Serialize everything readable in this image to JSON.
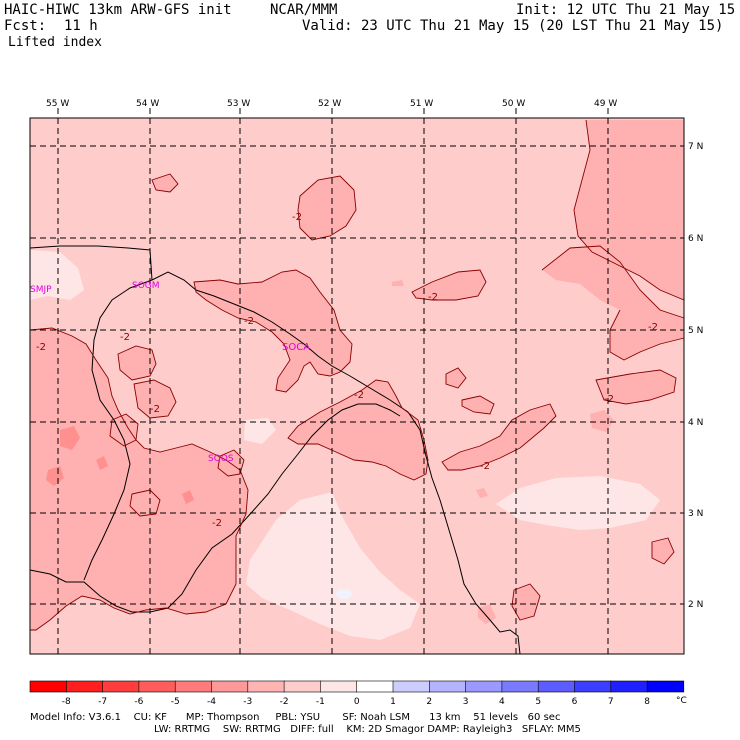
{
  "header": {
    "model": "HAIC-HIWC 13km ARW-GFS init",
    "org": "NCAR/MMM",
    "init": "Init: 12 UTC Thu 21 May 15",
    "fcst_label": "Fcst:",
    "fcst_value": "11 h",
    "valid": "Valid: 23 UTC Thu 21 May 15 (20 LST Thu 21 May 15)",
    "field": "Lifted index"
  },
  "map": {
    "lon_labels": [
      "55 W",
      "54 W",
      "53 W",
      "52 W",
      "51 W",
      "50 W",
      "49 W"
    ],
    "lat_labels": [
      "7 N",
      "6 N",
      "5 N",
      "4 N",
      "3 N",
      "2 N"
    ],
    "stations": [
      "SMJP",
      "SOGM",
      "SOCA",
      "SOOS"
    ],
    "contour_labels": [
      "-2",
      "-2",
      "-2",
      "-2",
      "-2",
      "-2",
      "-2",
      "-2",
      "-2",
      "-2",
      "-2"
    ]
  },
  "colorbar": {
    "tick_labels": [
      "-8",
      "-7",
      "-6",
      "-5",
      "-4",
      "-3",
      "-2",
      "-1",
      "0",
      "1",
      "2",
      "3",
      "4",
      "5",
      "6",
      "7",
      "8"
    ],
    "unit": "°C",
    "colors": [
      "#ff0000",
      "#ff1f1f",
      "#ff3d3d",
      "#ff5c5c",
      "#ff7a7a",
      "#ff9999",
      "#ffb3b3",
      "#ffcccc",
      "#ffe6e6",
      "#ffffff",
      "#ccccff",
      "#b3b3ff",
      "#9999ff",
      "#7a7aff",
      "#5c5cff",
      "#3d3dff",
      "#1f1fff",
      "#0000ff"
    ]
  },
  "footer": {
    "line1": "Model Info: V3.6.1    CU: KF      MP: Thompson     PBL: YSU       SF: Noah LSM      13 km    51 levels   60 sec",
    "line2": "LW: RRTMG    SW: RRTMG   DIFF: full    KM: 2D Smagor DAMP: Rayleigh3   SFLAY: MM5"
  }
}
